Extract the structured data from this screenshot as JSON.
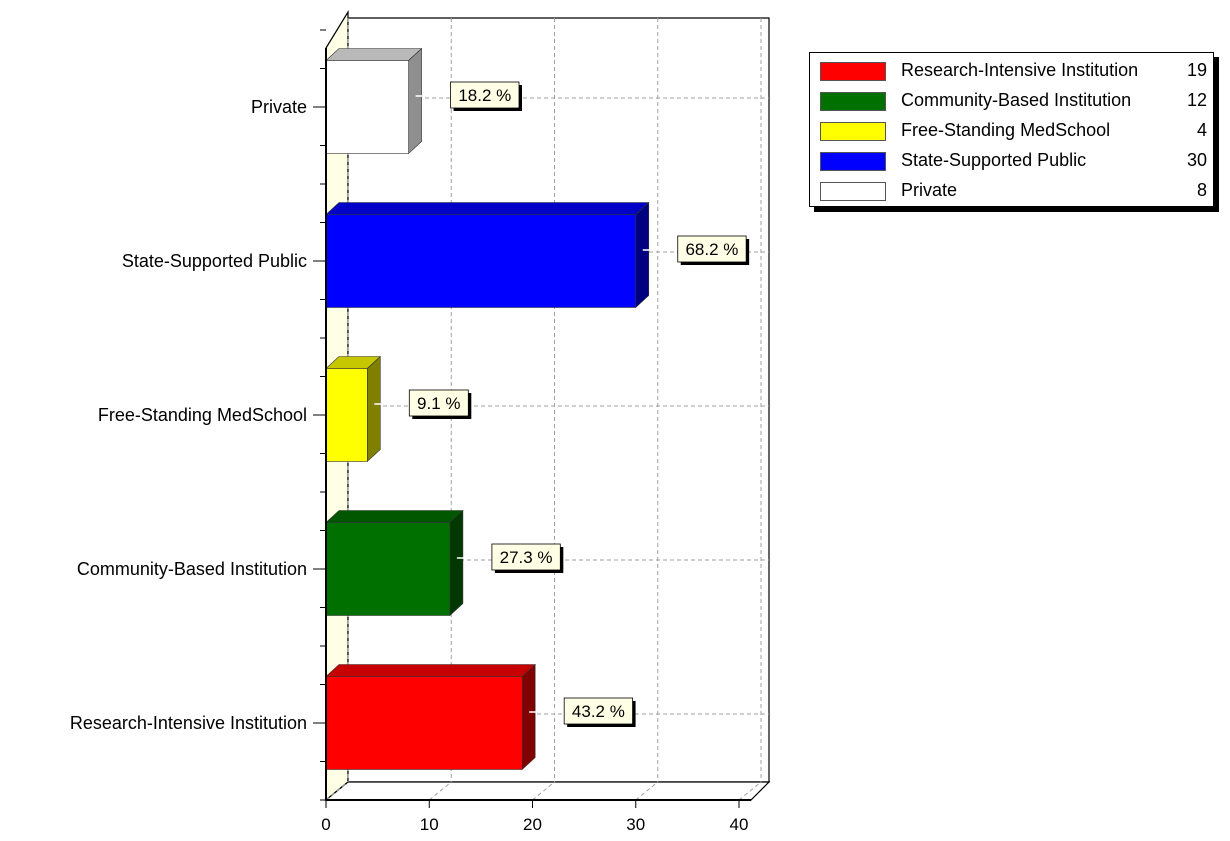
{
  "chart_data": {
    "type": "bar",
    "orientation": "horizontal",
    "categories": [
      "Research-Intensive Institution",
      "Community-Based Institution",
      "Free-Standing MedSchool",
      "State-Supported Public",
      "Private"
    ],
    "values": [
      19,
      12,
      4,
      30,
      8
    ],
    "data_labels": [
      "43.2 %",
      "27.3 %",
      "9.1 %",
      "68.2 %",
      "18.2 %"
    ],
    "colors": [
      "#ff0000",
      "#007000",
      "#ffff00",
      "#0000ff",
      "#ffffff"
    ],
    "xlim": [
      0,
      40
    ],
    "xticks": [
      0,
      10,
      20,
      30,
      40
    ],
    "xlabel": "",
    "ylabel": "",
    "grid": true,
    "legend_position": "top-right",
    "legend": [
      {
        "name": "Research-Intensive Institution",
        "value": "19",
        "color": "#ff0000"
      },
      {
        "name": "Community-Based Institution",
        "value": "12",
        "color": "#007000"
      },
      {
        "name": "Free-Standing MedSchool",
        "value": "4",
        "color": "#ffff00"
      },
      {
        "name": "State-Supported Public",
        "value": "30",
        "color": "#0000ff"
      },
      {
        "name": "Private",
        "value": "8",
        "color": "#ffffff"
      }
    ]
  }
}
